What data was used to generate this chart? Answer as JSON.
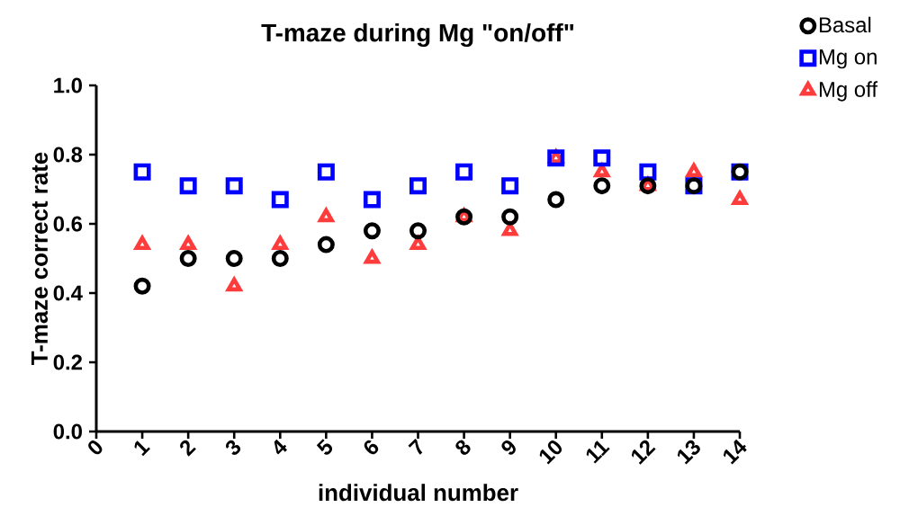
{
  "chart_data": {
    "type": "scatter",
    "title": "T-maze during Mg \"on/off\"",
    "xlabel": "individual number",
    "ylabel": "T-maze correct rate",
    "x": [
      1,
      2,
      3,
      4,
      5,
      6,
      7,
      8,
      9,
      10,
      11,
      12,
      13,
      14
    ],
    "series": [
      {
        "name": "Basal",
        "color": "#000000",
        "marker": "circle",
        "values": [
          0.42,
          0.5,
          0.5,
          0.5,
          0.54,
          0.58,
          0.58,
          0.62,
          0.62,
          0.67,
          0.71,
          0.71,
          0.71,
          0.75
        ]
      },
      {
        "name": "Mg on",
        "color": "#0000ff",
        "marker": "square",
        "values": [
          0.75,
          0.71,
          0.71,
          0.67,
          0.75,
          0.67,
          0.71,
          0.75,
          0.71,
          0.79,
          0.79,
          0.75,
          0.71,
          0.75
        ]
      },
      {
        "name": "Mg off",
        "color": "#ff3c3c",
        "marker": "triangle",
        "values": [
          0.54,
          0.54,
          0.42,
          0.54,
          0.62,
          0.5,
          0.54,
          0.62,
          0.58,
          0.79,
          0.75,
          0.71,
          0.75,
          0.67
        ]
      }
    ],
    "xlim": [
      0,
      14
    ],
    "xticks": [
      0,
      1,
      2,
      3,
      4,
      5,
      6,
      7,
      8,
      9,
      10,
      11,
      12,
      13,
      14
    ],
    "ylim": [
      0,
      1.0
    ],
    "yticks": [
      {
        "value": 0,
        "label": "0.0"
      },
      {
        "value": 0.2,
        "label": "0.2"
      },
      {
        "value": 0.4,
        "label": "0.4"
      },
      {
        "value": 0.6,
        "label": "0.6"
      },
      {
        "value": 0.8,
        "label": "0.8"
      },
      {
        "value": 1.0,
        "label": "1.0"
      }
    ],
    "grid": false,
    "legend": "top right"
  }
}
